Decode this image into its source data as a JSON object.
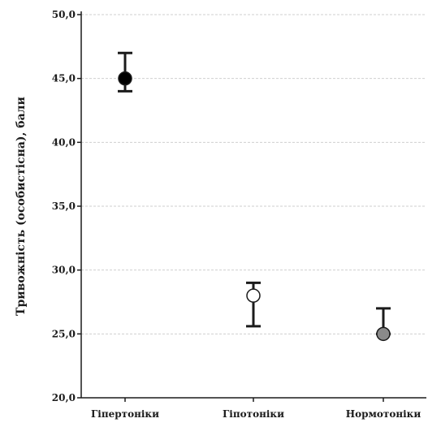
{
  "chart_data": {
    "type": "scatter",
    "title": "",
    "xlabel": "",
    "ylabel": "Тривожність (особистісна), бали",
    "categories": [
      "Гіпертоніки",
      "Гіпотоніки",
      "Нормотоніки"
    ],
    "ylim": [
      20,
      50
    ],
    "yticks": [
      20,
      25,
      30,
      35,
      40,
      45,
      50
    ],
    "ytick_labels": [
      "20,0",
      "25,0",
      "30,0",
      "35,0",
      "40,0",
      "45,0",
      "50,0"
    ],
    "grid": true,
    "points": [
      {
        "category": "Гіпертоніки",
        "mean": 45.0,
        "lower": 44.0,
        "upper": 47.0,
        "marker_color": "#000000"
      },
      {
        "category": "Гіпотоніки",
        "mean": 28.0,
        "lower": 25.6,
        "upper": 29.0,
        "marker_color": "#ffffff"
      },
      {
        "category": "Нормотоніки",
        "mean": 25.0,
        "lower": 25.0,
        "upper": 27.0,
        "marker_color": "#8a8a8a"
      }
    ],
    "colors": {
      "axis": "#1b1b1b",
      "grid": "#cfcfcf",
      "errorbar": "#1b1b1b"
    }
  }
}
